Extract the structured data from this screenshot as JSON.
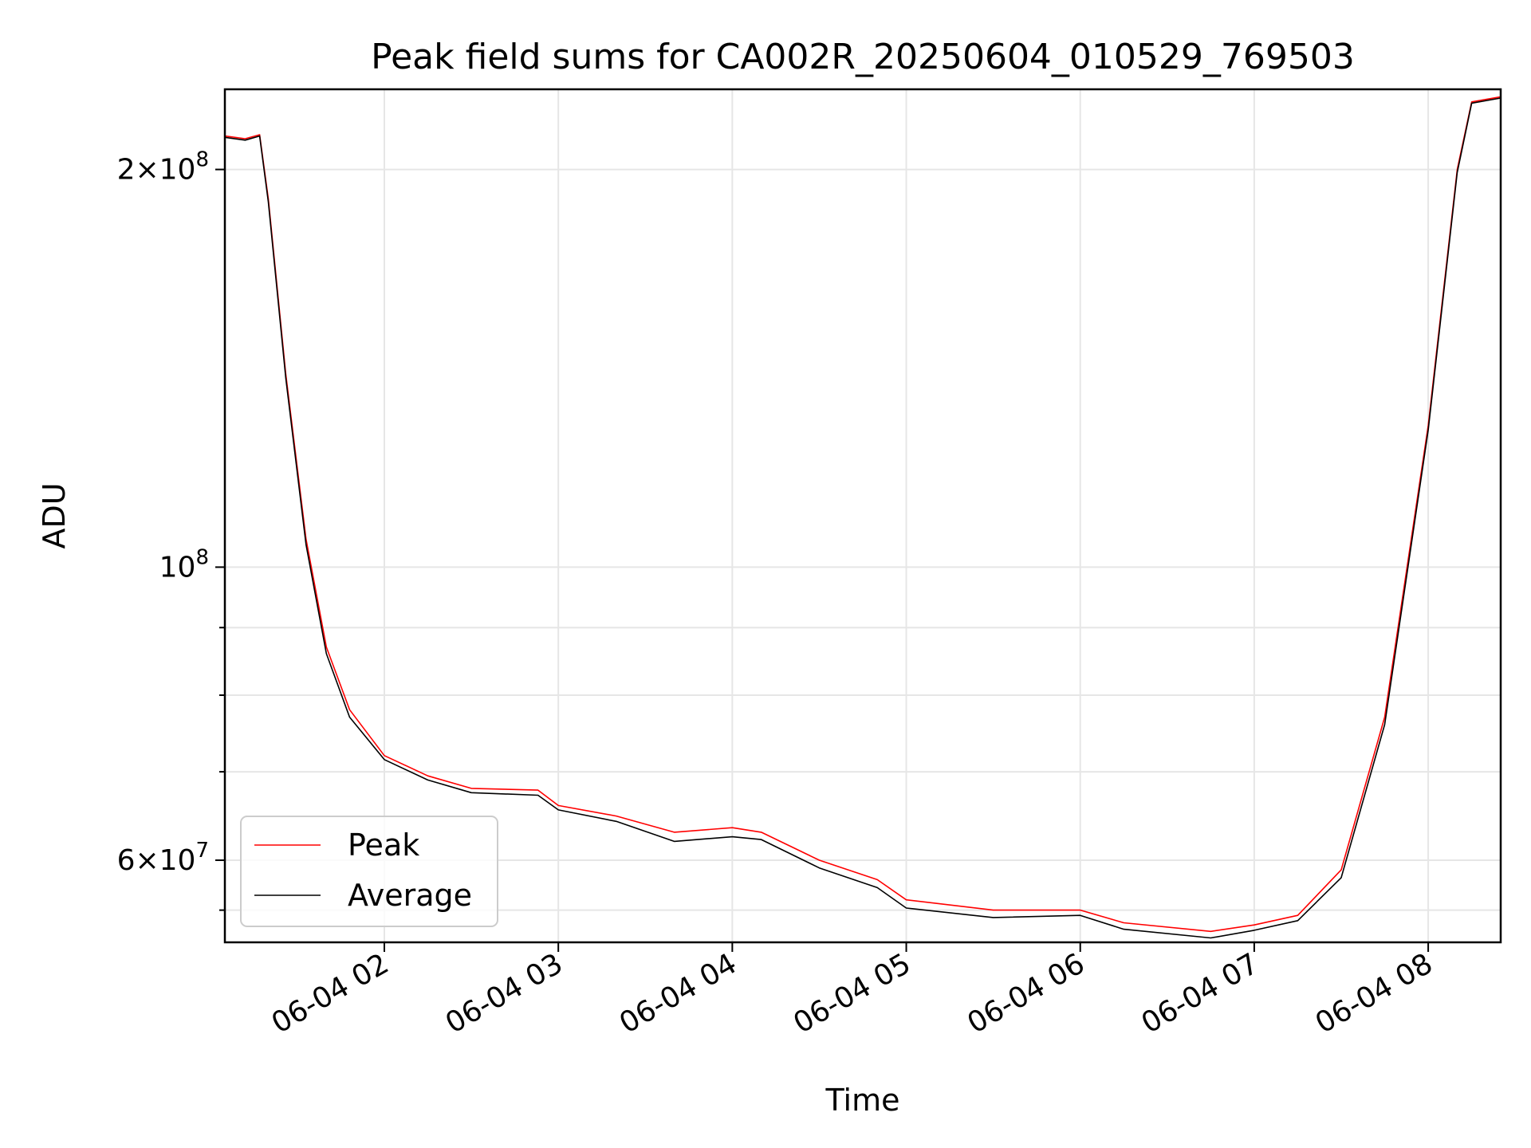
{
  "chart_data": {
    "type": "line",
    "title": "Peak field sums for CA002R_20250604_010529_769503",
    "xlabel": "Time",
    "ylabel": "ADU",
    "y_scale": "log",
    "grid": true,
    "legend_position": "lower-left",
    "xlim": [
      "2025-06-04 01:05",
      "2025-06-04 08:25"
    ],
    "ylim": [
      52000000,
      230000000
    ],
    "x_ticks": [
      "06-04 02",
      "06-04 03",
      "06-04 04",
      "06-04 05",
      "06-04 06",
      "06-04 07",
      "06-04 08"
    ],
    "x_tick_values": [
      "2025-06-04 02:00",
      "2025-06-04 03:00",
      "2025-06-04 04:00",
      "2025-06-04 05:00",
      "2025-06-04 06:00",
      "2025-06-04 07:00",
      "2025-06-04 08:00"
    ],
    "y_ticks": [
      {
        "value": 200000000,
        "mantissa": "2",
        "exponent": "8"
      },
      {
        "value": 100000000,
        "mantissa": "",
        "exponent": "8"
      },
      {
        "value": 60000000,
        "mantissa": "6",
        "exponent": "7"
      }
    ],
    "y_minor_ticks": [
      55000000,
      70000000,
      80000000,
      90000000
    ],
    "series": [
      {
        "name": "Peak",
        "color": "#ff0000",
        "points": [
          [
            "2025-06-04 01:05",
            212000000
          ],
          [
            "2025-06-04 01:12",
            211000000
          ],
          [
            "2025-06-04 01:17",
            212500000
          ],
          [
            "2025-06-04 01:20",
            190000000
          ],
          [
            "2025-06-04 01:26",
            140000000
          ],
          [
            "2025-06-04 01:33",
            105000000
          ],
          [
            "2025-06-04 01:40",
            87000000
          ],
          [
            "2025-06-04 01:48",
            78000000
          ],
          [
            "2025-06-04 02:00",
            72000000
          ],
          [
            "2025-06-04 02:15",
            69500000
          ],
          [
            "2025-06-04 02:30",
            68000000
          ],
          [
            "2025-06-04 02:53",
            67800000
          ],
          [
            "2025-06-04 03:00",
            66000000
          ],
          [
            "2025-06-04 03:20",
            64800000
          ],
          [
            "2025-06-04 03:40",
            63000000
          ],
          [
            "2025-06-04 04:00",
            63500000
          ],
          [
            "2025-06-04 04:10",
            63000000
          ],
          [
            "2025-06-04 04:30",
            60000000
          ],
          [
            "2025-06-04 04:50",
            58000000
          ],
          [
            "2025-06-04 05:00",
            56000000
          ],
          [
            "2025-06-04 05:30",
            55000000
          ],
          [
            "2025-06-04 06:00",
            55000000
          ],
          [
            "2025-06-04 06:15",
            53800000
          ],
          [
            "2025-06-04 06:45",
            53000000
          ],
          [
            "2025-06-04 07:00",
            53600000
          ],
          [
            "2025-06-04 07:15",
            54500000
          ],
          [
            "2025-06-04 07:30",
            59000000
          ],
          [
            "2025-06-04 07:45",
            77000000
          ],
          [
            "2025-06-04 08:00",
            128000000
          ],
          [
            "2025-06-04 08:10",
            200000000
          ],
          [
            "2025-06-04 08:15",
            225000000
          ],
          [
            "2025-06-04 08:25",
            227000000
          ]
        ]
      },
      {
        "name": "Average",
        "color": "#000000",
        "points": [
          [
            "2025-06-04 01:05",
            211500000
          ],
          [
            "2025-06-04 01:12",
            210500000
          ],
          [
            "2025-06-04 01:17",
            212000000
          ],
          [
            "2025-06-04 01:20",
            189000000
          ],
          [
            "2025-06-04 01:26",
            139000000
          ],
          [
            "2025-06-04 01:33",
            104000000
          ],
          [
            "2025-06-04 01:40",
            86000000
          ],
          [
            "2025-06-04 01:48",
            77000000
          ],
          [
            "2025-06-04 02:00",
            71500000
          ],
          [
            "2025-06-04 02:15",
            69000000
          ],
          [
            "2025-06-04 02:30",
            67500000
          ],
          [
            "2025-06-04 02:53",
            67200000
          ],
          [
            "2025-06-04 03:00",
            65500000
          ],
          [
            "2025-06-04 03:20",
            64200000
          ],
          [
            "2025-06-04 03:40",
            62000000
          ],
          [
            "2025-06-04 04:00",
            62500000
          ],
          [
            "2025-06-04 04:10",
            62200000
          ],
          [
            "2025-06-04 04:30",
            59200000
          ],
          [
            "2025-06-04 04:50",
            57200000
          ],
          [
            "2025-06-04 05:00",
            55200000
          ],
          [
            "2025-06-04 05:30",
            54300000
          ],
          [
            "2025-06-04 06:00",
            54500000
          ],
          [
            "2025-06-04 06:15",
            53200000
          ],
          [
            "2025-06-04 06:45",
            52400000
          ],
          [
            "2025-06-04 07:00",
            53100000
          ],
          [
            "2025-06-04 07:15",
            54000000
          ],
          [
            "2025-06-04 07:30",
            58200000
          ],
          [
            "2025-06-04 07:45",
            76000000
          ],
          [
            "2025-06-04 08:00",
            127000000
          ],
          [
            "2025-06-04 08:10",
            199000000
          ],
          [
            "2025-06-04 08:15",
            224500000
          ],
          [
            "2025-06-04 08:25",
            226500000
          ]
        ]
      }
    ]
  }
}
